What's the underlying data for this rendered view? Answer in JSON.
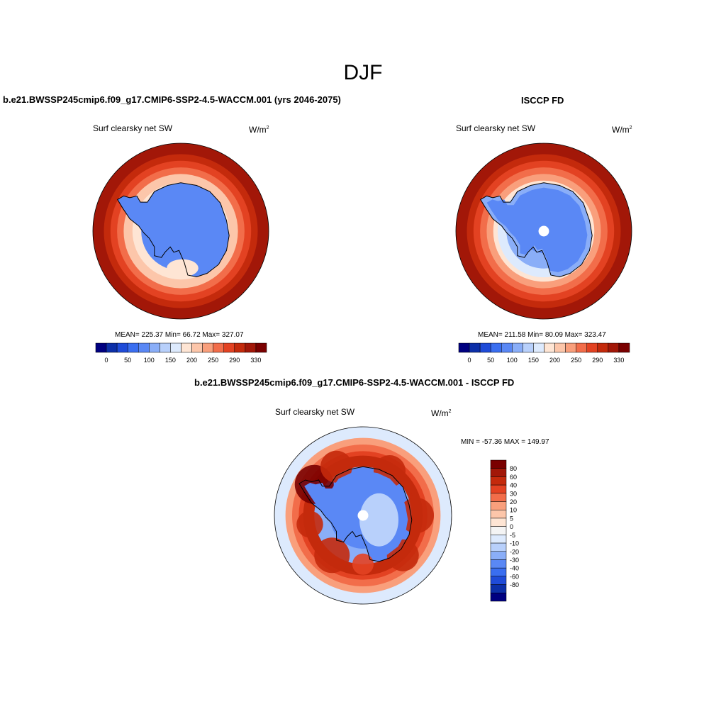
{
  "figure_title": "DJF",
  "variable_label": "Surf clearsky net SW",
  "units_base": "W/m",
  "units_sup": "2",
  "colors": {
    "abs_scale": [
      "#000080",
      "#0c2fa8",
      "#1f4bd8",
      "#3a6ef0",
      "#5a88f5",
      "#8aaef8",
      "#b8d0fb",
      "#ddeafd",
      "#fee5d4",
      "#fcc6aa",
      "#f99f7c",
      "#f26d4a",
      "#e34222",
      "#c42a0c",
      "#a21708",
      "#7a0000"
    ],
    "diff_scale": [
      "#000080",
      "#0c2fa8",
      "#1f4bd8",
      "#3a6ef0",
      "#5a88f5",
      "#8aaef8",
      "#b8d0fb",
      "#ddeafd",
      "#f4f4f4",
      "#fee5d4",
      "#fcc6aa",
      "#f99f7c",
      "#f26d4a",
      "#e34222",
      "#c42a0c",
      "#a21708",
      "#7a0000"
    ],
    "coastline": "#000000"
  },
  "chart_data": [
    {
      "type": "heatmap",
      "projection": "south-polar-stereographic",
      "title": "b.e21.BWSSP245cmip6.f09_g17.CMIP6-SSP2-4.5-WACCM.001 (yrs 2046-2075)",
      "variable": "Surf clearsky net SW",
      "units": "W/m2",
      "stats_text": "MEAN= 225.37  Min=  66.72  Max= 327.07",
      "stats": {
        "mean": 225.37,
        "min": 66.72,
        "max": 327.07
      },
      "colorbar_labels": [
        "0",
        "50",
        "100",
        "150",
        "200",
        "250",
        "290",
        "330"
      ],
      "rings": [
        {
          "lat": -50,
          "value": 315
        },
        {
          "lat": -55,
          "value": 300
        },
        {
          "lat": -58,
          "value": 280
        },
        {
          "lat": -61,
          "value": 250
        },
        {
          "lat": -64,
          "value": 215
        },
        {
          "lat": -68,
          "value": 180
        },
        {
          "lat": -72,
          "value": 90
        }
      ]
    },
    {
      "type": "heatmap",
      "projection": "south-polar-stereographic",
      "title": "ISCCP FD",
      "variable": "Surf clearsky net SW",
      "units": "W/m2",
      "stats_text": "MEAN= 211.58  Min=  80.09  Max= 323.47",
      "stats": {
        "mean": 211.58,
        "min": 80.09,
        "max": 323.47
      },
      "colorbar_labels": [
        "0",
        "50",
        "100",
        "150",
        "200",
        "250",
        "290",
        "330"
      ],
      "rings": [
        {
          "lat": -50,
          "value": 315
        },
        {
          "lat": -55,
          "value": 300
        },
        {
          "lat": -58,
          "value": 280
        },
        {
          "lat": -61,
          "value": 255
        },
        {
          "lat": -64,
          "value": 225
        },
        {
          "lat": -67,
          "value": 190
        },
        {
          "lat": -69,
          "value": 150
        },
        {
          "lat": -73,
          "value": 110
        },
        {
          "lat": -80,
          "value": 95
        }
      ],
      "missing_pole": true
    },
    {
      "type": "heatmap",
      "projection": "south-polar-stereographic",
      "title": "b.e21.BWSSP245cmip6.f09_g17.CMIP6-SSP2-4.5-WACCM.001 - ISCCP FD",
      "variable": "Surf clearsky net SW",
      "units": "W/m2",
      "stats_text": "MIN = -57.36 MAX = 149.97",
      "stats": {
        "min": -57.36,
        "max": 149.97
      },
      "colorbar_labels": [
        "80",
        "60",
        "40",
        "30",
        "20",
        "10",
        "5",
        "0",
        "-5",
        "-10",
        "-20",
        "-30",
        "-40",
        "-60",
        "-80"
      ],
      "rings": [
        {
          "lat": -50,
          "value": -3
        },
        {
          "lat": -55,
          "value": 12
        },
        {
          "lat": -58,
          "value": 20
        },
        {
          "lat": -61,
          "value": 35
        },
        {
          "lat": -63,
          "value": 55
        },
        {
          "lat": -66,
          "value": 40
        },
        {
          "lat": -68,
          "value": -12
        },
        {
          "lat": -75,
          "value": -22
        }
      ],
      "missing_pole": true
    }
  ]
}
